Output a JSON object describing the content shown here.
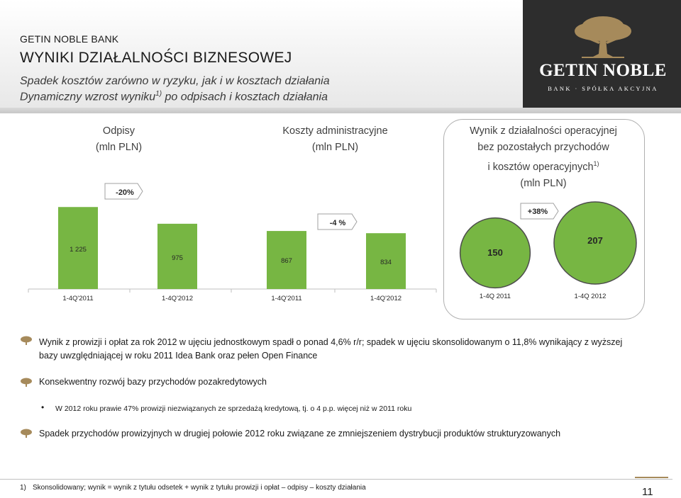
{
  "header": {
    "bank_name": "GETIN NOBLE BANK",
    "title": "WYNIKI DZIAŁALNOŚCI BIZNESOWEJ",
    "subtitle1": "Spadek kosztów zarówno w ryzyku, jak i w kosztach działania",
    "subtitle2_pre": "Dynamiczny wzrost wyniku",
    "subtitle2_sup": "1)",
    "subtitle2_post": " po odpisach i kosztach działania",
    "logo_text": "GETIN NOBLE",
    "logo_sub": "BANK · SPÓŁKA AKCYJNA"
  },
  "panels": {
    "odpisy_title1": "Odpisy",
    "odpisy_title2": "(mln PLN)",
    "koszty_title1": "Koszty administracyjne",
    "koszty_title2": "(mln PLN)",
    "wynik_title1": "Wynik z działalności  operacyjnej",
    "wynik_title2": "bez pozostałych przychodów",
    "wynik_title3_pre": "i kosztów operacyjnych",
    "wynik_title3_sup": "1)",
    "wynik_title4": "(mln PLN)"
  },
  "chart_data": [
    {
      "type": "bar",
      "categories": [
        "1-4Q'2011",
        "1-4Q'2012"
      ],
      "values": [
        1225,
        975
      ],
      "data_labels": [
        "1 225",
        "975"
      ],
      "change_label": "-20%",
      "color": "#77b643"
    },
    {
      "type": "bar",
      "categories": [
        "1-4Q'2011",
        "1-4Q'2012"
      ],
      "values": [
        867,
        834
      ],
      "data_labels": [
        "867",
        "834"
      ],
      "change_label": "-4 %",
      "color": "#77b643"
    },
    {
      "type": "bubble",
      "categories": [
        "1-4Q 2011",
        "1-4Q 2012"
      ],
      "values": [
        150,
        207
      ],
      "data_labels": [
        "150",
        "207"
      ],
      "change_label": "+38%",
      "color": "#77b643"
    }
  ],
  "bullets": [
    {
      "line1": "Wynik z prowizji i opłat za rok 2012 w ujęciu jednostkowym spadł o ponad 4,6% r/r; spadek w ujęciu skonsolidowanym o 11,8% wynikający z wyższej",
      "line2": "bazy uwzględniającej w roku 2011 Idea Bank oraz pełen Open Finance"
    },
    {
      "line1": "Konsekwentny rozwój bazy przychodów pozakredytowych"
    },
    {
      "line1": "W 2012 roku prawie 47% prowizji niezwiązanych ze sprzedażą kredytową, tj. o 4 p.p. więcej niż w 2011 roku"
    },
    {
      "line1": "Spadek przychodów prowizyjnych w drugiej połowie 2012 roku związane ze zmniejszeniem dystrybucji produktów strukturyzowanych"
    }
  ],
  "footnote": {
    "num": "1)",
    "text": "Skonsolidowany; wynik = wynik z tytułu odsetek + wynik z tytułu prowizji i opłat – odpisy – koszty działania"
  },
  "page_number": "11",
  "colors": {
    "bar": "#77b643",
    "accent": "#a68a5b"
  }
}
